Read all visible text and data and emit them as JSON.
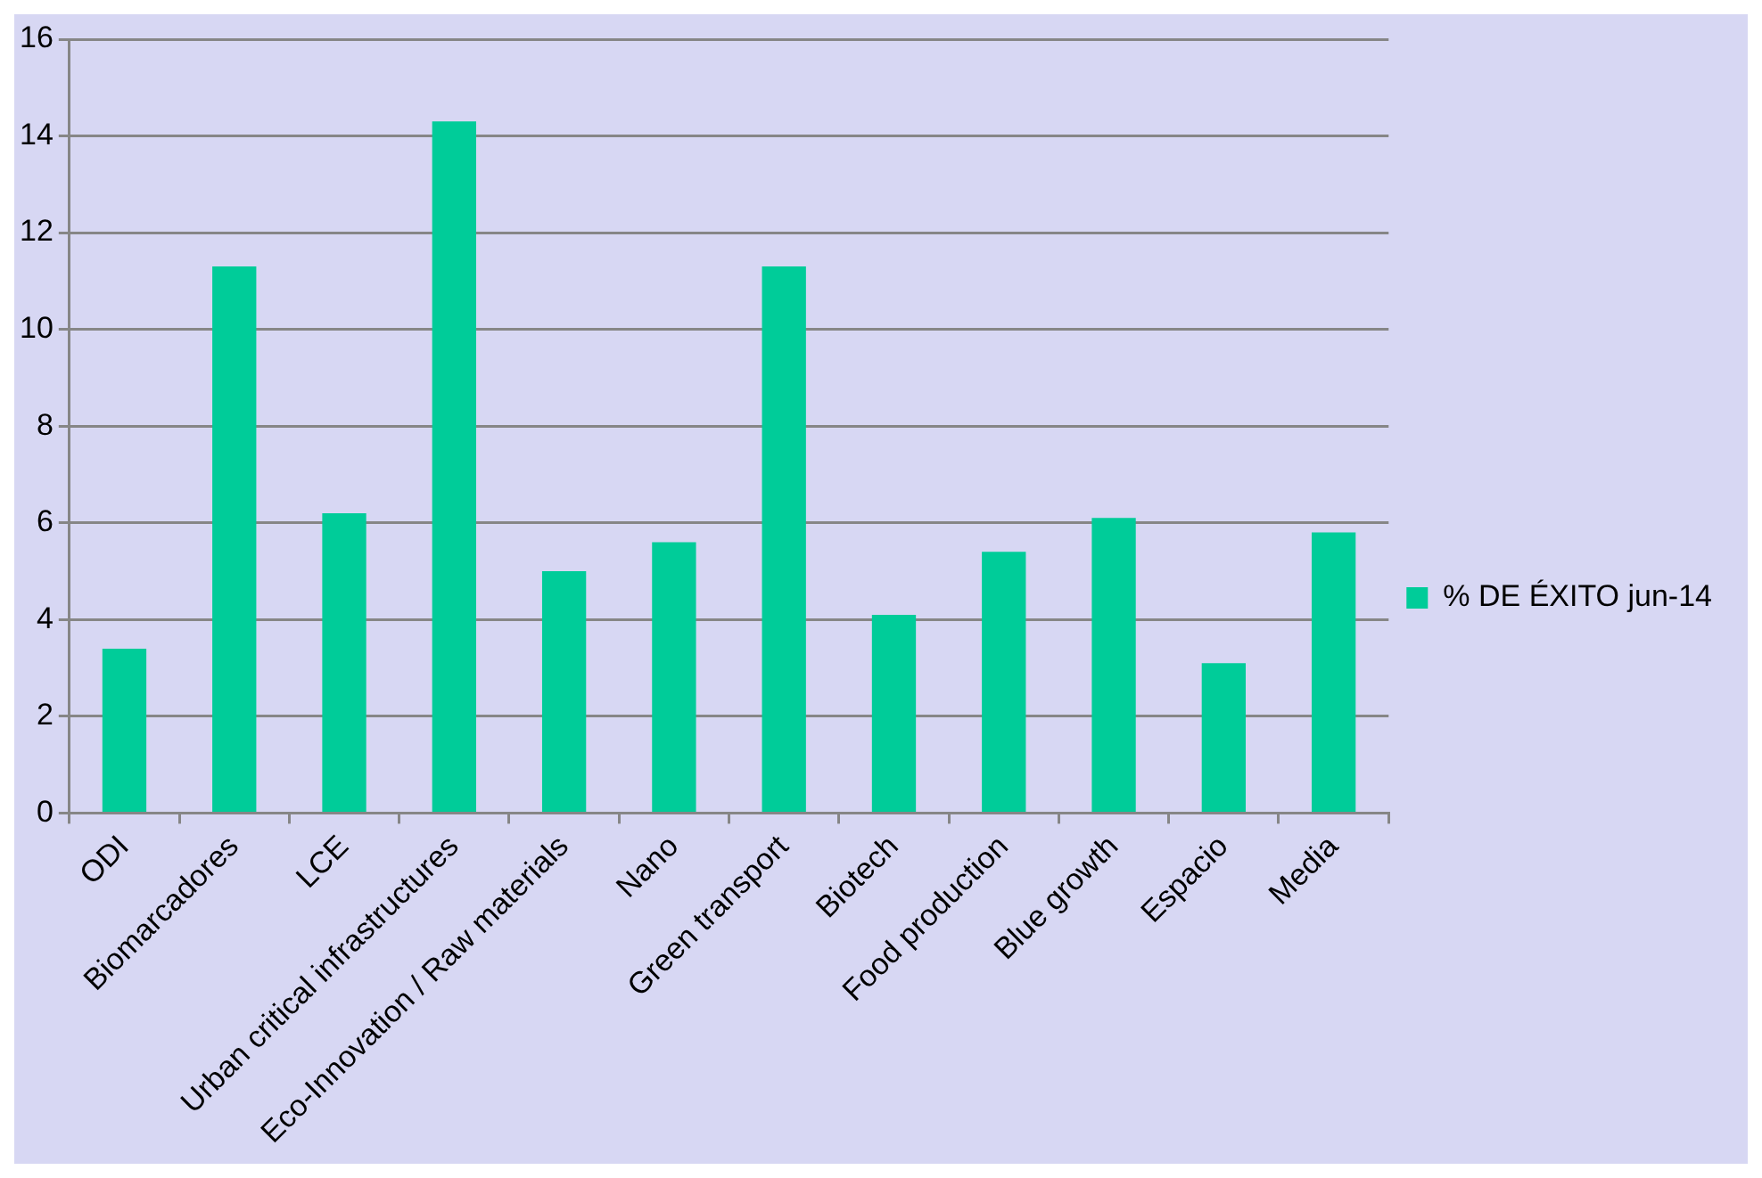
{
  "chart_data": {
    "type": "bar",
    "categories": [
      "ODI",
      "Biomarcadores",
      "LCE",
      "Urban critical infrastructures",
      "Eco-Innovation / Raw materials",
      "Nano",
      "Green transport",
      "Biotech",
      "Food production",
      "Blue growth",
      "Espacio",
      "Media"
    ],
    "series": [
      {
        "name": "% DE ÉXITO jun-14",
        "color": "#00cc99",
        "values": [
          3.4,
          11.3,
          6.2,
          14.3,
          5.0,
          5.6,
          11.3,
          4.1,
          5.4,
          6.1,
          3.1,
          5.8
        ]
      }
    ],
    "ylim": [
      0,
      16
    ],
    "yticks": [
      0,
      2,
      4,
      6,
      8,
      10,
      12,
      14,
      16
    ],
    "grid": "y",
    "legend": "right"
  }
}
